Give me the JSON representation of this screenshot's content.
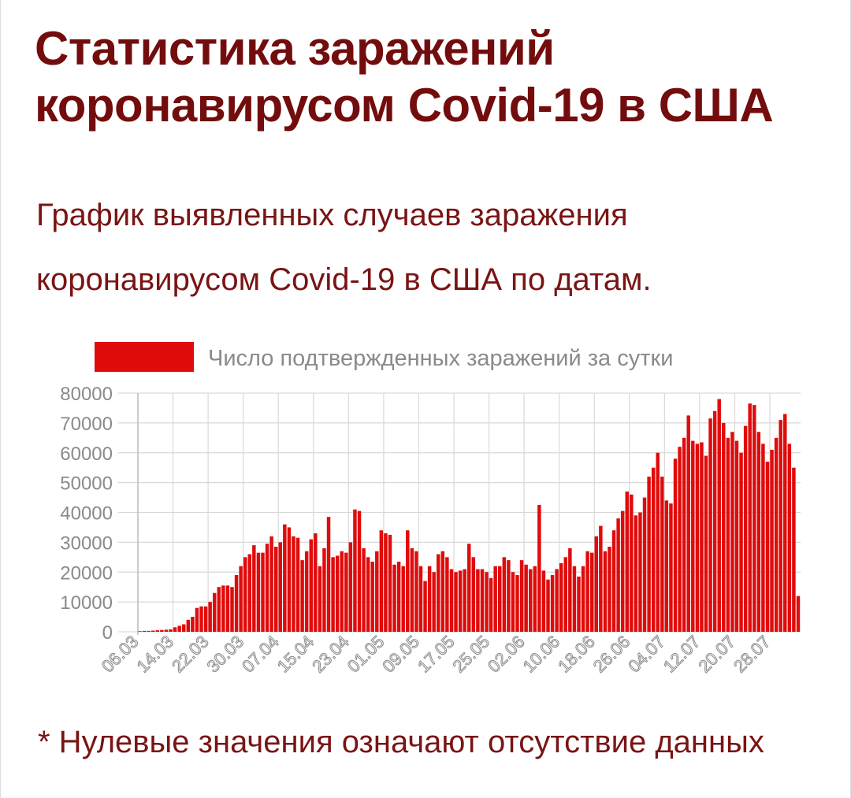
{
  "title": "Статистика заражений коронавирусом Covid-19 в США",
  "subtitle": "График выявленных случаев заражения коронавирусом Covid-19 в США по датам.",
  "footnote": "* Нулевые значения означают отсутствие данных",
  "colors": {
    "title": "#730d0d",
    "text": "#7a1414",
    "bar": "#e00b0b",
    "grid": "#d9d9d9",
    "axis_text": "#8a8a8a"
  },
  "chart_data": {
    "type": "bar",
    "legend": {
      "label": "Число подтвержденных заражений за сутки",
      "position": "top"
    },
    "series": [
      {
        "name": "Число подтвержденных заражений за сутки"
      }
    ],
    "x_tick_labels": [
      "06.03",
      "14.03",
      "22.03",
      "30.03",
      "07.04",
      "15.04",
      "23.04",
      "01.05",
      "09.05",
      "17.05",
      "25.05",
      "02.06",
      "10.06",
      "18.06",
      "26.06",
      "04.07",
      "12.07",
      "20.07",
      "28.07"
    ],
    "y_ticks": [
      0,
      10000,
      20000,
      30000,
      40000,
      50000,
      60000,
      70000,
      80000
    ],
    "ylim": [
      0,
      80000
    ],
    "grid": true,
    "x_range": [
      "06.03",
      "01.08"
    ],
    "values": [
      200,
      300,
      300,
      400,
      500,
      600,
      700,
      800,
      1500,
      2000,
      2500,
      4000,
      5000,
      8000,
      8500,
      8500,
      10000,
      13000,
      15000,
      15500,
      15500,
      15000,
      19000,
      22000,
      25000,
      26000,
      29000,
      26500,
      26500,
      29500,
      32000,
      28500,
      30000,
      36000,
      35000,
      32000,
      31500,
      24000,
      27000,
      31000,
      33000,
      22000,
      28000,
      38500,
      25000,
      25500,
      27000,
      26500,
      30000,
      41000,
      40500,
      28000,
      25000,
      23500,
      27000,
      34000,
      33000,
      32500,
      22500,
      23500,
      22000,
      34000,
      28000,
      27000,
      22000,
      17000,
      22000,
      20000,
      26000,
      27000,
      25000,
      21000,
      20000,
      20500,
      21000,
      29500,
      25000,
      21000,
      21000,
      20000,
      18000,
      22000,
      22000,
      25000,
      24000,
      20000,
      19000,
      24000,
      22500,
      21000,
      22000,
      42500,
      20500,
      17500,
      19000,
      21000,
      23000,
      25000,
      28000,
      22000,
      18500,
      22000,
      27000,
      26500,
      32000,
      35500,
      27000,
      28500,
      34000,
      38000,
      40500,
      47000,
      46000,
      39000,
      40000,
      45000,
      52000,
      55000,
      60000,
      52000,
      44000,
      43000,
      58000,
      62000,
      65000,
      72500,
      64000,
      63000,
      63500,
      59000,
      71500,
      74000,
      78000,
      70000,
      65000,
      67000,
      64000,
      60000,
      69000,
      76500,
      76000,
      67000,
      63000,
      57000,
      61000,
      65000,
      71000,
      73000,
      63000,
      55000,
      12000
    ]
  }
}
